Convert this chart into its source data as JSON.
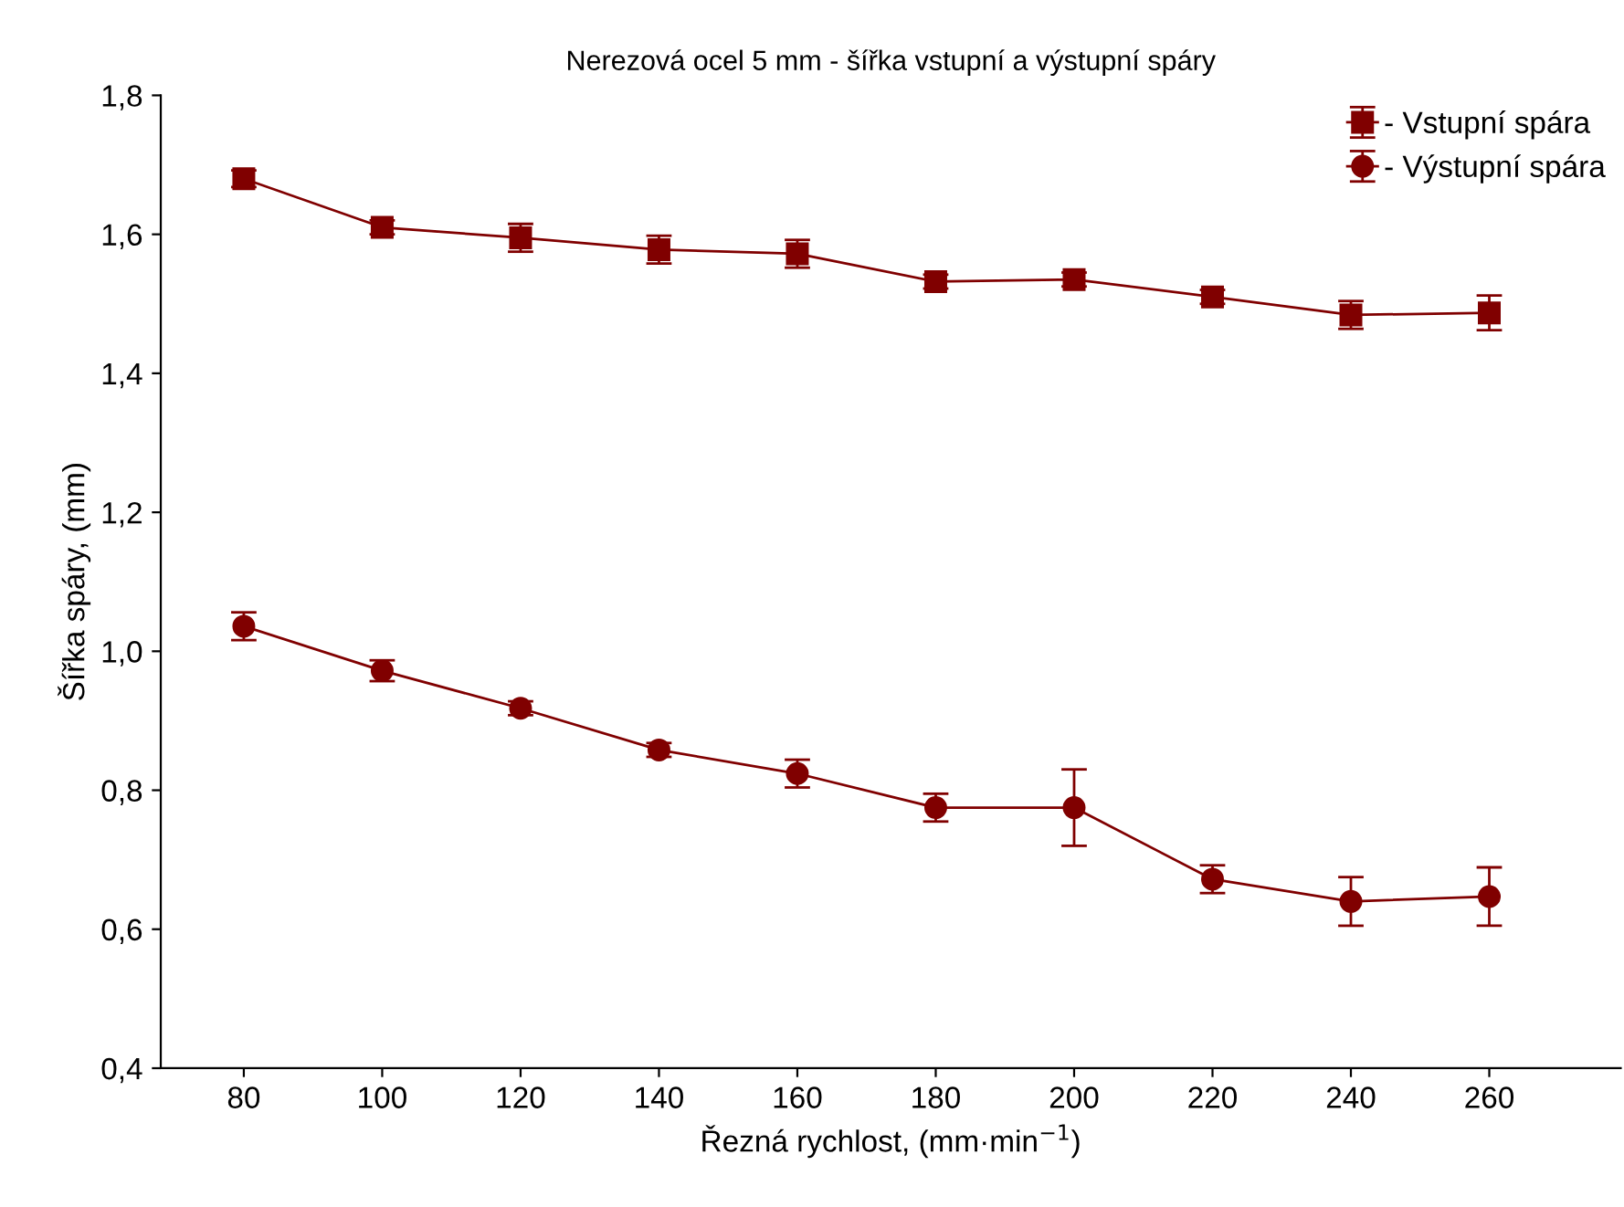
{
  "chart_data": {
    "type": "line",
    "title": "Nerezová ocel 5 mm - šířka vstupní a výstupní spáry",
    "xlabel": "Řezná rychlost, (mm·min$^{−1}$)",
    "ylabel": "Šířka spáry, (mm)",
    "x": [
      80,
      100,
      120,
      140,
      160,
      180,
      200,
      220,
      240,
      260
    ],
    "series": [
      {
        "name": "- Vstupní spára",
        "color": "#800000",
        "marker": "square",
        "values": [
          1.68,
          1.61,
          1.595,
          1.578,
          1.572,
          1.532,
          1.535,
          1.51,
          1.484,
          1.487
        ],
        "errors": [
          0.012,
          0.01,
          0.02,
          0.02,
          0.02,
          0.01,
          0.01,
          0.01,
          0.02,
          0.025
        ]
      },
      {
        "name": "- Výstupní spára",
        "color": "#800000",
        "marker": "circle",
        "values": [
          1.036,
          0.972,
          0.918,
          0.858,
          0.824,
          0.775,
          0.775,
          0.672,
          0.64,
          0.647
        ],
        "errors": [
          0.02,
          0.015,
          0.01,
          0.01,
          0.02,
          0.02,
          0.055,
          0.02,
          0.035,
          0.042
        ]
      }
    ],
    "xlim": [
      68,
      279
    ],
    "ylim": [
      0.4,
      1.8
    ],
    "xticks": [
      80,
      100,
      120,
      140,
      160,
      180,
      200,
      220,
      240,
      260
    ],
    "yticks": [
      {
        "value": 0.4,
        "label": "0,4"
      },
      {
        "value": 0.6,
        "label": "0,6"
      },
      {
        "value": 0.8,
        "label": "0,8"
      },
      {
        "value": 1.0,
        "label": "1,0"
      },
      {
        "value": 1.2,
        "label": "1,2"
      },
      {
        "value": 1.4,
        "label": "1,4"
      },
      {
        "value": 1.6,
        "label": "1,6"
      },
      {
        "value": 1.8,
        "label": "1,8"
      }
    ],
    "grid": false,
    "legend": "top right",
    "line_style": "solid"
  }
}
